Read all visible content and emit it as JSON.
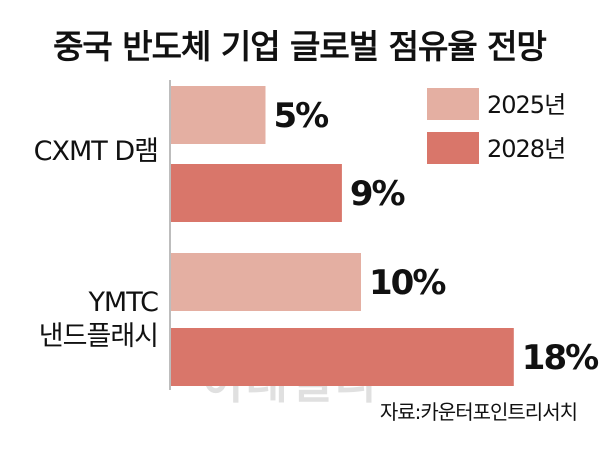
{
  "chart_data": {
    "type": "bar",
    "orientation": "horizontal",
    "title": "중국 반도체 기업 글로벌 점유율 전망",
    "categories": [
      [
        "CXMT D램"
      ],
      [
        "YMTC",
        "낸드플래시"
      ]
    ],
    "series": [
      {
        "name": "2025년",
        "color": "#e4afa2",
        "values": [
          5,
          10
        ],
        "labels": [
          "5%",
          "10%"
        ]
      },
      {
        "name": "2028년",
        "color": "#d9766a",
        "values": [
          9,
          18
        ],
        "labels": [
          "9%",
          "18%"
        ]
      }
    ],
    "xlim": [
      0,
      18
    ],
    "legend_position": "top-right",
    "grid": false
  },
  "watermark": "이데일리",
  "source": "자료:카운터포인트리서치"
}
